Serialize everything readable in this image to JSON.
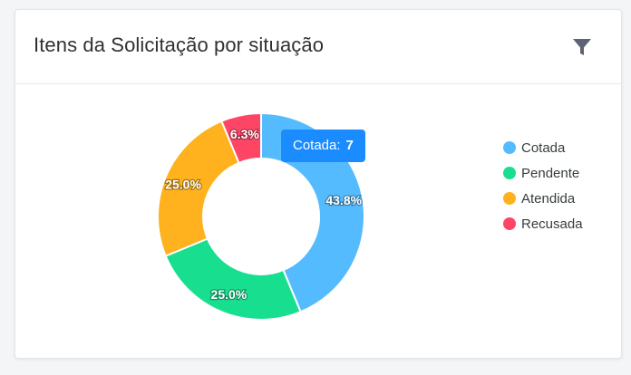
{
  "card": {
    "title": "Itens da Solicitação por situação",
    "filter_icon": "filter-icon"
  },
  "colors": {
    "Cotada": "#55bbff",
    "Pendente": "#18df8f",
    "Atendida": "#ffb21d",
    "Recusada": "#ff4566"
  },
  "tooltip": {
    "label": "Cotada:",
    "value": "7",
    "color": "#1a8cff"
  },
  "chart_data": {
    "type": "pie",
    "categories": [
      "Cotada",
      "Pendente",
      "Atendida",
      "Recusada"
    ],
    "values": [
      7,
      4,
      4,
      1
    ],
    "data_labels": [
      "43.8%",
      "25.0%",
      "25.0%",
      "6.3%"
    ],
    "legend_position": "right"
  }
}
